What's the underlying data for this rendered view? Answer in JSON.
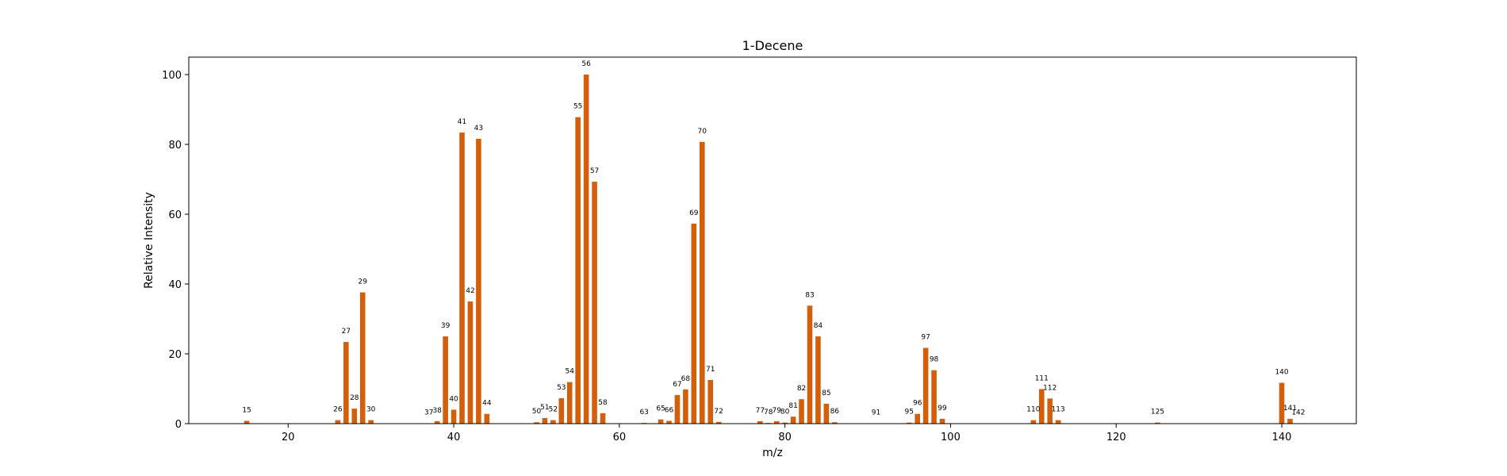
{
  "chart_data": {
    "type": "bar",
    "title": "1-Decene",
    "xlabel": "m/z",
    "ylabel": "Relative Intensity",
    "xlim": [
      8,
      149
    ],
    "ylim": [
      0,
      105
    ],
    "grid": false,
    "bar_color": "#d35f0a",
    "x_ticks": [
      20,
      40,
      60,
      80,
      100,
      120,
      140
    ],
    "y_ticks": [
      0,
      20,
      40,
      60,
      80,
      100
    ],
    "x": [
      15,
      26,
      27,
      28,
      29,
      30,
      37,
      38,
      39,
      40,
      41,
      42,
      43,
      44,
      50,
      51,
      52,
      53,
      54,
      55,
      56,
      57,
      58,
      63,
      65,
      66,
      67,
      68,
      69,
      70,
      71,
      72,
      77,
      78,
      79,
      80,
      81,
      82,
      83,
      84,
      85,
      86,
      91,
      95,
      96,
      97,
      98,
      99,
      110,
      111,
      112,
      113,
      125,
      140,
      141,
      142
    ],
    "values": [
      0.8,
      1.0,
      23.4,
      4.3,
      37.6,
      1.0,
      0.1,
      0.7,
      25.0,
      4.0,
      83.4,
      35.0,
      81.6,
      2.8,
      0.4,
      1.6,
      1.0,
      7.3,
      11.9,
      87.8,
      100.0,
      69.3,
      3.0,
      0.2,
      1.2,
      0.8,
      8.2,
      9.8,
      57.3,
      80.7,
      12.5,
      0.5,
      0.7,
      0.2,
      0.7,
      0.3,
      2.0,
      7.0,
      33.8,
      25.0,
      5.7,
      0.4,
      0.1,
      0.3,
      2.8,
      21.7,
      15.3,
      1.4,
      1.0,
      9.9,
      7.2,
      1.0,
      0.3,
      11.7,
      1.4,
      0.1
    ]
  }
}
